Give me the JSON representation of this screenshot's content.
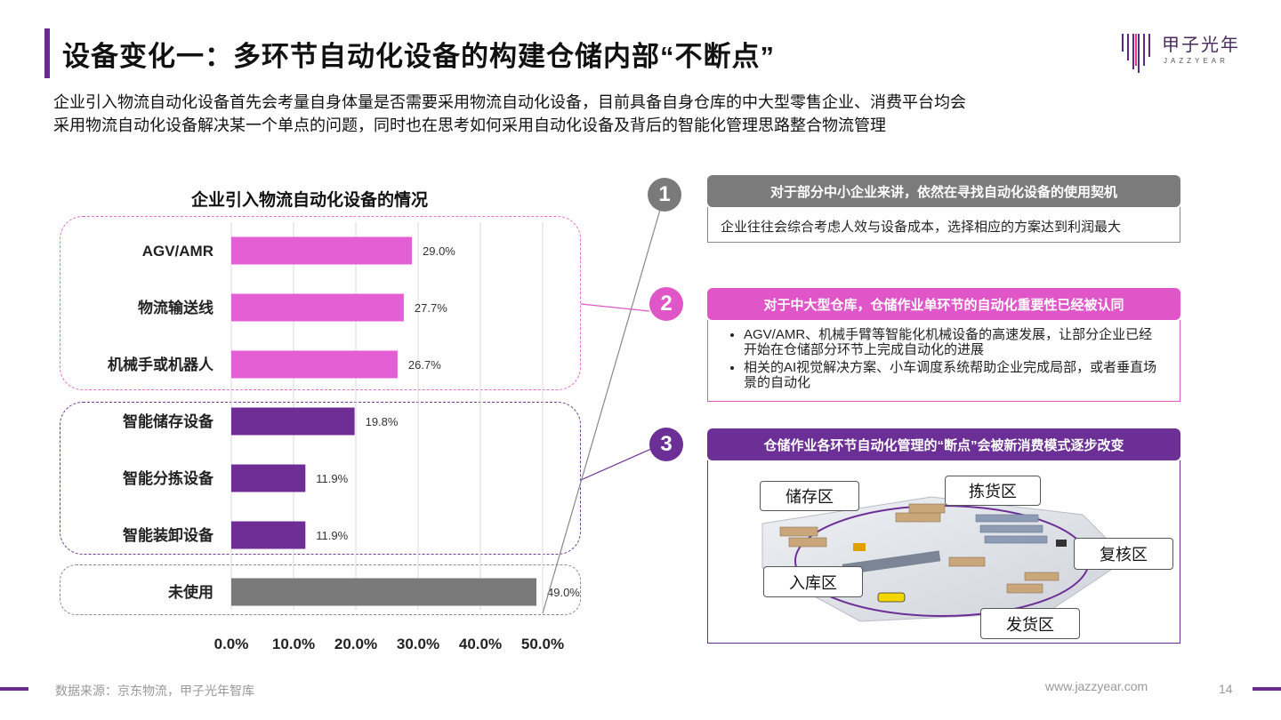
{
  "header": {
    "title": "设备变化一：多环节自动化设备的构建仓储内部“不断点”",
    "logo_cn": "甲子光年",
    "logo_en": "JAZZYEAR"
  },
  "intro": {
    "line1": "企业引入物流自动化设备首先会考量自身体量是否需要采用物流自动化设备，目前具备自身仓库的中大型零售企业、消费平台均会",
    "line2": "采用物流自动化设备解决某一个单点的问题，同时也在思考如何采用自动化设备及背后的智能化管理思路整合物流管理"
  },
  "chart_data": {
    "type": "bar",
    "orientation": "horizontal",
    "title": "企业引入物流自动化设备的情况",
    "categories": [
      "AGV/AMR",
      "物流输送线",
      "机械手或机器人",
      "智能储存设备",
      "智能分拣设备",
      "智能装卸设备",
      "未使用"
    ],
    "values": [
      29.0,
      27.7,
      26.7,
      19.8,
      11.9,
      11.9,
      49.0
    ],
    "value_labels": [
      "29.0%",
      "27.7%",
      "26.7%",
      "19.8%",
      "11.9%",
      "11.9%",
      "49.0%"
    ],
    "bar_colors": [
      "#e45fd3",
      "#e45fd3",
      "#e45fd3",
      "#6f2d96",
      "#6f2d96",
      "#6f2d96",
      "#7a7a7a"
    ],
    "xlim": [
      0,
      50
    ],
    "xticks": [
      0,
      10,
      20,
      30,
      40,
      50
    ],
    "xtick_labels": [
      "0.0%",
      "10.0%",
      "20.0%",
      "30.0%",
      "40.0%",
      "50.0%"
    ],
    "grid": true
  },
  "callouts": [
    {
      "num": "1",
      "head": "对于部分中小企业来讲，依然在寻找自动化设备的使用契机",
      "body": "企业往往会综合考虑人效与设备成本，选择相应的方案达到利润最大"
    },
    {
      "num": "2",
      "head": "对于中大型仓库，仓储作业单环节的自动化重要性已经被认同",
      "bullets": [
        "AGV/AMR、机械手臂等智能化机械设备的高速发展，让部分企业已经开始在仓储部分环节上完成自动化的进展",
        "相关的AI视觉解决方案、小车调度系统帮助企业完成局部，或者垂直场景的自动化"
      ]
    },
    {
      "num": "3",
      "head": "仓储作业各环节自动化管理的“断点”会被新消费模式逐步改变",
      "zones": [
        "储存区",
        "拣货区",
        "复核区",
        "入库区",
        "发货区"
      ]
    }
  ],
  "footer": {
    "source": "数据来源：京东物流，甲子光年智库",
    "website": "www.jazzyear.com",
    "page": "14"
  },
  "colors": {
    "purple": "#6a2b8e",
    "pink": "#e056c8",
    "gray": "#7b7b7b"
  }
}
